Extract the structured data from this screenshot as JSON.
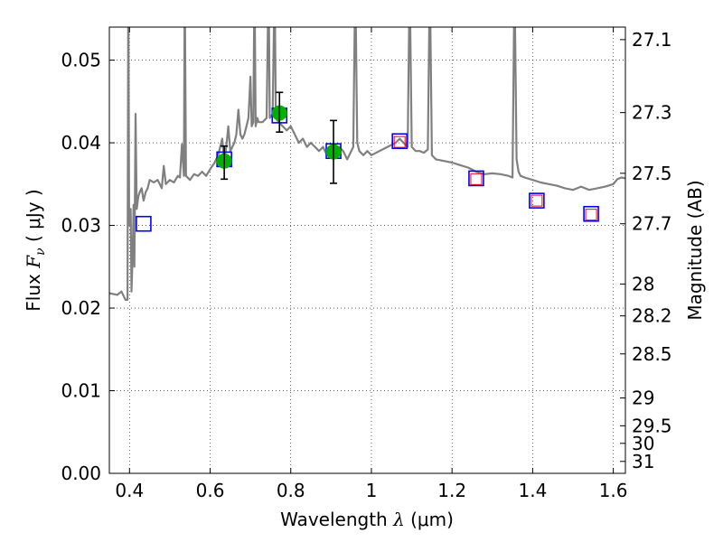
{
  "chart_data": {
    "type": "scatter",
    "xlabel": "Wavelength",
    "xlabel_math": "λ",
    "xlabel_unit": "(μm)",
    "ylabel": "Flux",
    "ylabel_math": "F",
    "ylabel_math_sub": "ν",
    "ylabel_unit": "( μJy )",
    "y2label": "Magnitude (AB)",
    "xlim": [
      0.35,
      1.63
    ],
    "ylim": [
      0.0,
      0.054
    ],
    "grid": true,
    "x_ticks": [
      {
        "value": 0.4,
        "label": "0.4"
      },
      {
        "value": 0.6,
        "label": "0.6"
      },
      {
        "value": 0.8,
        "label": "0.8"
      },
      {
        "value": 1.0,
        "label": "1"
      },
      {
        "value": 1.2,
        "label": "1.2"
      },
      {
        "value": 1.4,
        "label": "1.4"
      },
      {
        "value": 1.6,
        "label": "1.6"
      }
    ],
    "y_ticks": [
      {
        "value": 0.0,
        "label": "0.00"
      },
      {
        "value": 0.01,
        "label": "0.01"
      },
      {
        "value": 0.02,
        "label": "0.02"
      },
      {
        "value": 0.03,
        "label": "0.03"
      },
      {
        "value": 0.04,
        "label": "0.04"
      },
      {
        "value": 0.05,
        "label": "0.05"
      }
    ],
    "y2_ticks": [
      {
        "value": 27.1,
        "label": "27.1"
      },
      {
        "value": 27.3,
        "label": "27.3"
      },
      {
        "value": 27.5,
        "label": "27.5"
      },
      {
        "value": 27.7,
        "label": "27.7"
      },
      {
        "value": 28.0,
        "label": "28"
      },
      {
        "value": 28.2,
        "label": "28.2"
      },
      {
        "value": 28.5,
        "label": "28.5"
      },
      {
        "value": 29.0,
        "label": "29"
      },
      {
        "value": 29.5,
        "label": "29.5"
      },
      {
        "value": 30.0,
        "label": "30"
      },
      {
        "value": 31.0,
        "label": "31"
      }
    ],
    "series": [
      {
        "type": "line",
        "color": "#808080",
        "points": [
          [
            0.35,
            0.0218
          ],
          [
            0.37,
            0.0216
          ],
          [
            0.38,
            0.022
          ],
          [
            0.385,
            0.0215
          ],
          [
            0.39,
            0.021
          ],
          [
            0.393,
            0.021
          ],
          [
            0.395,
            0.021
          ],
          [
            0.397,
            0.06
          ],
          [
            0.399,
            0.03
          ],
          [
            0.403,
            0.032
          ],
          [
            0.405,
            0.022
          ],
          [
            0.408,
            0.027
          ],
          [
            0.41,
            0.0325
          ],
          [
            0.412,
            0.025
          ],
          [
            0.415,
            0.0435
          ],
          [
            0.418,
            0.032
          ],
          [
            0.422,
            0.0335
          ],
          [
            0.425,
            0.034
          ],
          [
            0.43,
            0.0345
          ],
          [
            0.435,
            0.033
          ],
          [
            0.44,
            0.034
          ],
          [
            0.445,
            0.0345
          ],
          [
            0.45,
            0.0355
          ],
          [
            0.46,
            0.0352
          ],
          [
            0.47,
            0.0355
          ],
          [
            0.48,
            0.0345
          ],
          [
            0.485,
            0.0372
          ],
          [
            0.49,
            0.035
          ],
          [
            0.5,
            0.0355
          ],
          [
            0.51,
            0.0352
          ],
          [
            0.52,
            0.036
          ],
          [
            0.525,
            0.0358
          ],
          [
            0.53,
            0.0398
          ],
          [
            0.535,
            0.036
          ],
          [
            0.537,
            0.06
          ],
          [
            0.54,
            0.036
          ],
          [
            0.55,
            0.0355
          ],
          [
            0.56,
            0.0362
          ],
          [
            0.57,
            0.036
          ],
          [
            0.58,
            0.0365
          ],
          [
            0.59,
            0.036
          ],
          [
            0.6,
            0.0368
          ],
          [
            0.61,
            0.0375
          ],
          [
            0.62,
            0.0385
          ],
          [
            0.63,
            0.0405
          ],
          [
            0.635,
            0.038
          ],
          [
            0.64,
            0.0395
          ],
          [
            0.645,
            0.042
          ],
          [
            0.65,
            0.039
          ],
          [
            0.655,
            0.0395
          ],
          [
            0.66,
            0.04
          ],
          [
            0.665,
            0.041
          ],
          [
            0.67,
            0.044
          ],
          [
            0.675,
            0.041
          ],
          [
            0.68,
            0.0405
          ],
          [
            0.685,
            0.041
          ],
          [
            0.69,
            0.042
          ],
          [
            0.695,
            0.043
          ],
          [
            0.7,
            0.048
          ],
          [
            0.703,
            0.042
          ],
          [
            0.707,
            0.0425
          ],
          [
            0.71,
            0.06
          ],
          [
            0.713,
            0.042
          ],
          [
            0.717,
            0.043
          ],
          [
            0.72,
            0.0425
          ],
          [
            0.73,
            0.0425
          ],
          [
            0.74,
            0.043
          ],
          [
            0.745,
            0.06
          ],
          [
            0.748,
            0.043
          ],
          [
            0.755,
            0.0435
          ],
          [
            0.76,
            0.06
          ],
          [
            0.763,
            0.043
          ],
          [
            0.77,
            0.0425
          ],
          [
            0.78,
            0.042
          ],
          [
            0.79,
            0.0415
          ],
          [
            0.8,
            0.042
          ],
          [
            0.81,
            0.041
          ],
          [
            0.82,
            0.04
          ],
          [
            0.83,
            0.0405
          ],
          [
            0.84,
            0.0395
          ],
          [
            0.85,
            0.04
          ],
          [
            0.86,
            0.0395
          ],
          [
            0.87,
            0.039
          ],
          [
            0.88,
            0.0395
          ],
          [
            0.89,
            0.0385
          ],
          [
            0.9,
            0.039
          ],
          [
            0.91,
            0.0385
          ],
          [
            0.92,
            0.0395
          ],
          [
            0.93,
            0.039
          ],
          [
            0.94,
            0.038
          ],
          [
            0.95,
            0.039
          ],
          [
            0.955,
            0.0395
          ],
          [
            0.96,
            0.06
          ],
          [
            0.965,
            0.04
          ],
          [
            0.97,
            0.039
          ],
          [
            0.98,
            0.0385
          ],
          [
            0.99,
            0.039
          ],
          [
            1.0,
            0.0385
          ],
          [
            1.02,
            0.039
          ],
          [
            1.04,
            0.0395
          ],
          [
            1.06,
            0.04
          ],
          [
            1.07,
            0.0405
          ],
          [
            1.08,
            0.04
          ],
          [
            1.09,
            0.0395
          ],
          [
            1.095,
            0.06
          ],
          [
            1.1,
            0.0395
          ],
          [
            1.11,
            0.039
          ],
          [
            1.12,
            0.039
          ],
          [
            1.13,
            0.0388
          ],
          [
            1.14,
            0.0392
          ],
          [
            1.145,
            0.06
          ],
          [
            1.15,
            0.0385
          ],
          [
            1.16,
            0.038
          ],
          [
            1.18,
            0.0378
          ],
          [
            1.2,
            0.0376
          ],
          [
            1.22,
            0.0373
          ],
          [
            1.24,
            0.037
          ],
          [
            1.26,
            0.0365
          ],
          [
            1.28,
            0.0362
          ],
          [
            1.3,
            0.0363
          ],
          [
            1.32,
            0.0362
          ],
          [
            1.34,
            0.036
          ],
          [
            1.35,
            0.0358
          ],
          [
            1.355,
            0.06
          ],
          [
            1.36,
            0.038
          ],
          [
            1.365,
            0.0365
          ],
          [
            1.37,
            0.036
          ],
          [
            1.38,
            0.0358
          ],
          [
            1.4,
            0.0355
          ],
          [
            1.42,
            0.0352
          ],
          [
            1.44,
            0.035
          ],
          [
            1.46,
            0.0348
          ],
          [
            1.48,
            0.0345
          ],
          [
            1.5,
            0.0343
          ],
          [
            1.52,
            0.0347
          ],
          [
            1.54,
            0.0343
          ],
          [
            1.56,
            0.0345
          ],
          [
            1.58,
            0.0347
          ],
          [
            1.6,
            0.035
          ],
          [
            1.61,
            0.0356
          ],
          [
            1.62,
            0.0358
          ],
          [
            1.63,
            0.0357
          ]
        ]
      },
      {
        "type": "points",
        "marker": "square",
        "color": "#0000ff",
        "points": [
          [
            0.435,
            0.0302
          ],
          [
            0.635,
            0.038
          ],
          [
            0.772,
            0.0433
          ],
          [
            0.906,
            0.039
          ],
          [
            1.07,
            0.0402
          ],
          [
            1.26,
            0.0357
          ],
          [
            1.41,
            0.033
          ],
          [
            1.545,
            0.0314
          ]
        ]
      },
      {
        "type": "points",
        "marker": "square",
        "color": "#ff0000",
        "points": [
          [
            1.07,
            0.0401
          ],
          [
            1.26,
            0.0356
          ],
          [
            1.41,
            0.033
          ],
          [
            1.545,
            0.0313
          ]
        ]
      },
      {
        "type": "points",
        "marker": "circle",
        "color": "#00b000",
        "points": [
          [
            0.635,
            0.0378
          ],
          [
            0.772,
            0.0436
          ],
          [
            0.906,
            0.0389
          ]
        ]
      },
      {
        "type": "errorbar",
        "color": "#000000",
        "points": [
          {
            "x": 0.635,
            "y": 0.0378,
            "ylo": 0.0356,
            "yhi": 0.0396
          },
          {
            "x": 0.772,
            "y": 0.0436,
            "ylo": 0.0413,
            "yhi": 0.0461
          },
          {
            "x": 0.906,
            "y": 0.0389,
            "ylo": 0.0351,
            "yhi": 0.0427
          }
        ]
      }
    ]
  }
}
